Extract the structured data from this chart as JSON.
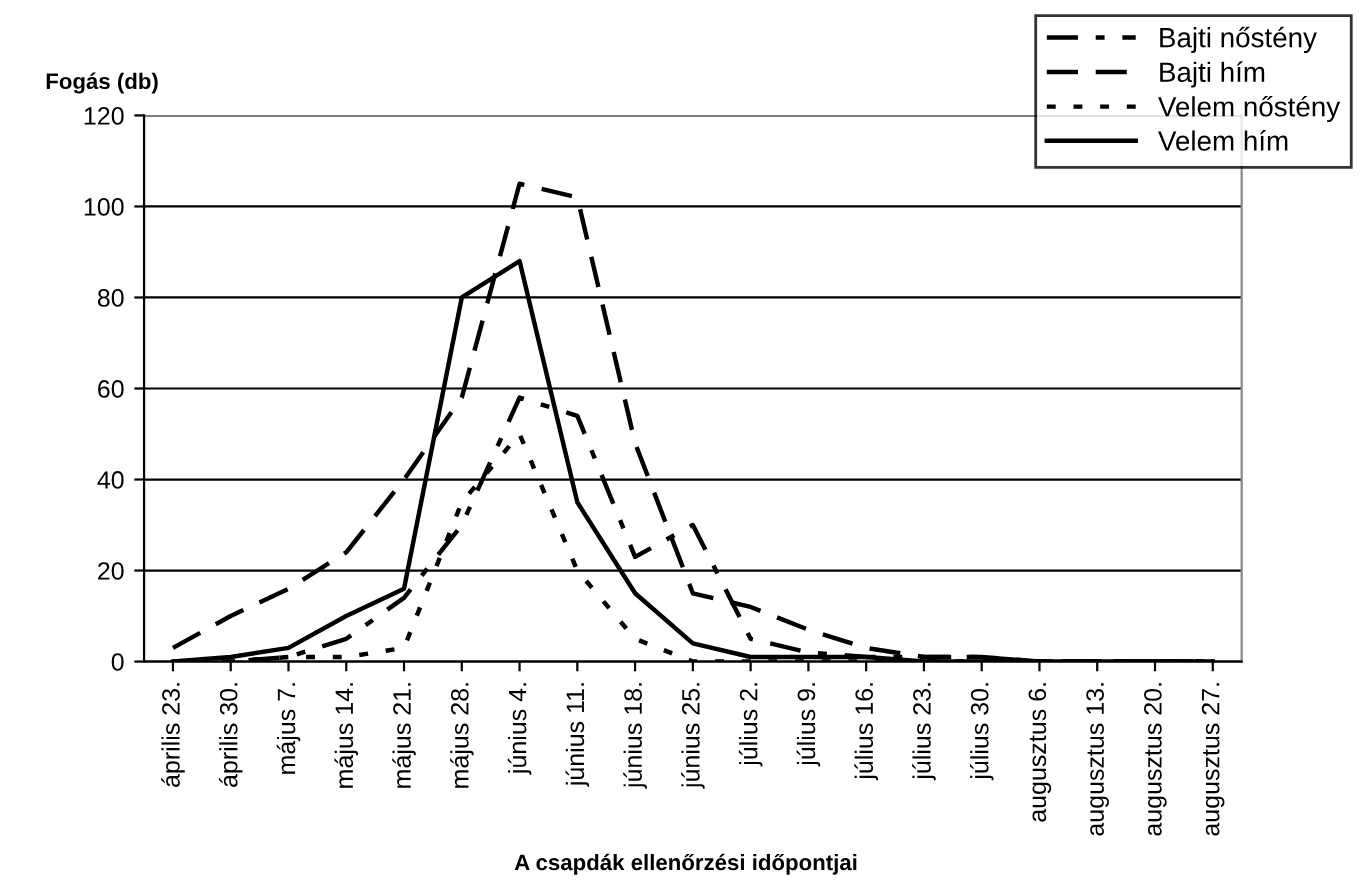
{
  "chart_data": {
    "type": "line",
    "ylabel": "Fogás (db)",
    "xlabel": "A csapdák ellenőrzési időpontjai",
    "categories": [
      "április 23.",
      "április 30.",
      "május 7.",
      "május 14.",
      "május 21.",
      "május 28.",
      "június 4.",
      "június 11.",
      "június 18.",
      "június 25.",
      "július 2.",
      "július 9.",
      "július 16.",
      "július 23.",
      "július 30.",
      "augusztus 6.",
      "augusztus 13.",
      "augusztus 20.",
      "augusztus 27."
    ],
    "series": [
      {
        "name": "Bajti nőstény",
        "color": "#000000",
        "line_style": "dashdot",
        "values": [
          0,
          0,
          1,
          5,
          14,
          30,
          58,
          54,
          23,
          30,
          5,
          2,
          1,
          1,
          1,
          0,
          0,
          0,
          0
        ]
      },
      {
        "name": "Bajti hím",
        "color": "#000000",
        "line_style": "dashed",
        "values": [
          3,
          10,
          16,
          24,
          40,
          58,
          105,
          102,
          48,
          15,
          12,
          7,
          3,
          1,
          1,
          0,
          0,
          0,
          0
        ]
      },
      {
        "name": "Velem nőstény",
        "color": "#000000",
        "line_style": "dotted",
        "values": [
          0,
          0,
          1,
          1,
          3,
          35,
          50,
          20,
          5,
          0,
          0,
          0,
          0,
          0,
          0,
          0,
          0,
          0,
          0
        ]
      },
      {
        "name": "Velem hím",
        "color": "#000000",
        "line_style": "solid",
        "values": [
          0,
          1,
          3,
          10,
          16,
          80,
          88,
          35,
          15,
          4,
          1,
          1,
          1,
          0,
          0,
          0,
          0,
          0,
          0
        ]
      }
    ],
    "ylim": [
      0,
      120
    ],
    "yticks": [
      0,
      20,
      40,
      60,
      80,
      100,
      120
    ],
    "grid": "y",
    "legend": "top right",
    "marker": "none"
  }
}
